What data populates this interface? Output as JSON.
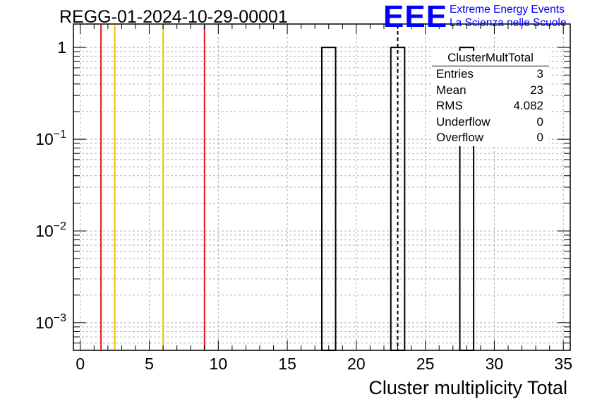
{
  "header": {
    "title": "REGG-01-2024-10-29-00001",
    "logo_text": "EEE",
    "logo_line1": "Extreme Energy Events",
    "logo_line2": "La Scienza nelle Scuole",
    "brand_color": "#0000ff"
  },
  "stats_box": {
    "title": "ClusterMultTotal",
    "rows": [
      {
        "label": "Entries",
        "value": "3"
      },
      {
        "label": "Mean",
        "value": "23"
      },
      {
        "label": "RMS",
        "value": "4.082"
      },
      {
        "label": "Underflow",
        "value": "0"
      },
      {
        "label": "Overflow",
        "value": "0"
      }
    ]
  },
  "chart_data": {
    "type": "bar",
    "title": "REGG-01-2024-10-29-00001",
    "xlabel": "Cluster multiplicity Total",
    "ylabel": "",
    "x_scale": "linear",
    "y_scale": "log",
    "xlim": [
      -0.5,
      35.5
    ],
    "ylim": [
      0.0005,
      1.8
    ],
    "grid": true,
    "x_ticks": [
      0,
      5,
      10,
      15,
      20,
      25,
      30,
      35
    ],
    "y_ticks": [
      {
        "value": 1,
        "base": "1",
        "exp": ""
      },
      {
        "value": 0.1,
        "base": "10",
        "exp": "−1"
      },
      {
        "value": 0.01,
        "base": "10",
        "exp": "−2"
      },
      {
        "value": 0.001,
        "base": "10",
        "exp": "−3"
      }
    ],
    "bins": [
      {
        "low": 17.5,
        "high": 18.5,
        "count": 1
      },
      {
        "low": 22.5,
        "high": 23.5,
        "count": 1
      },
      {
        "low": 27.5,
        "high": 28.5,
        "count": 1
      }
    ],
    "reference_lines": [
      {
        "x": 1.5,
        "color": "#e8141a"
      },
      {
        "x": 2.5,
        "color": "#f2c500"
      },
      {
        "x": 6,
        "color": "#f2c500"
      },
      {
        "x": 9,
        "color": "#e8141a"
      }
    ],
    "mean_line": {
      "x": 23,
      "style": "dashed",
      "color": "#000000"
    }
  }
}
